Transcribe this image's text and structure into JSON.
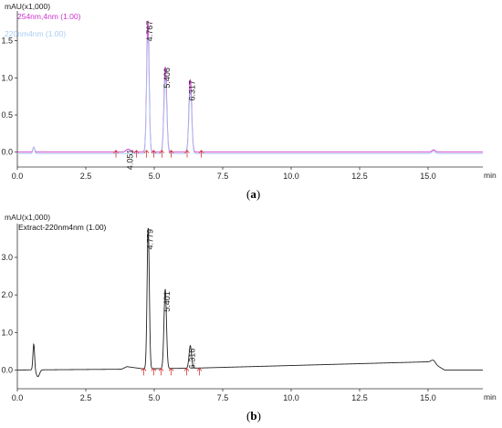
{
  "chart_data": [
    {
      "type": "line",
      "caption": "a",
      "y_unit_label": "mAU(x1,000)",
      "x_unit_label": "min",
      "legend": [
        {
          "text": "254nm,4nm (1.00)",
          "color": "#cc33cc"
        },
        {
          "text": "220nm4nm (1.00)",
          "color": "#aaccf0"
        }
      ],
      "xlim": [
        0,
        17
      ],
      "ylim": [
        -0.2,
        1.9
      ],
      "x_ticks": [
        0.0,
        2.5,
        5.0,
        7.5,
        10.0,
        12.5,
        15.0
      ],
      "x_tick_labels": [
        "0.0",
        "2.5",
        "5.0",
        "7.5",
        "10.0",
        "12.5",
        "15.0"
      ],
      "y_ticks": [
        0.0,
        0.5,
        1.0,
        1.5
      ],
      "y_tick_labels": [
        "0.0",
        "0.5",
        "1.0",
        "1.5"
      ],
      "series": [
        {
          "name": "254nm,4nm (1.00)",
          "color": "#cc33cc",
          "baseline": 0.0,
          "peaks": [
            {
              "x": 0.6,
              "height": 0.07,
              "width": 0.03
            },
            {
              "x": 4.051,
              "height": 0.04,
              "width": 0.08
            },
            {
              "x": 4.767,
              "height": 1.78,
              "width": 0.045
            },
            {
              "x": 5.406,
              "height": 1.15,
              "width": 0.05
            },
            {
              "x": 6.317,
              "height": 0.98,
              "width": 0.05
            },
            {
              "x": 15.2,
              "height": 0.03,
              "width": 0.06
            }
          ]
        },
        {
          "name": "220nm4nm (1.00)",
          "color": "#aaccf0",
          "baseline": -0.02,
          "peaks": [
            {
              "x": 0.6,
              "height": 0.09,
              "width": 0.03
            },
            {
              "x": 4.767,
              "height": 1.58,
              "width": 0.045
            },
            {
              "x": 5.406,
              "height": 1.0,
              "width": 0.05
            },
            {
              "x": 6.317,
              "height": 0.85,
              "width": 0.05
            },
            {
              "x": 15.2,
              "height": 0.03,
              "width": 0.06
            }
          ]
        }
      ],
      "peak_labels": [
        {
          "x": 4.051,
          "y": 0.05,
          "text": "4.051"
        },
        {
          "x": 4.767,
          "y": 1.78,
          "text": "4.767"
        },
        {
          "x": 5.406,
          "y": 1.15,
          "text": "5.406"
        },
        {
          "x": 6.317,
          "y": 0.98,
          "text": "6.317"
        }
      ],
      "integration_markers": [
        3.6,
        4.35,
        4.72,
        4.98,
        5.28,
        5.62,
        6.2,
        6.72
      ],
      "integration_marker_y": 0.0
    },
    {
      "type": "line",
      "caption": "b",
      "y_unit_label": "mAU(x1,000)",
      "x_unit_label": "min",
      "legend": [
        {
          "text": "Extract-220nm4nm (1.00)",
          "color": "#111111"
        }
      ],
      "xlim": [
        0,
        17
      ],
      "ylim": [
        -0.5,
        3.9
      ],
      "x_ticks": [
        0.0,
        2.5,
        5.0,
        7.5,
        10.0,
        12.5,
        15.0
      ],
      "x_tick_labels": [
        "0.0",
        "2.5",
        "5.0",
        "7.5",
        "10.0",
        "12.5",
        "15.0"
      ],
      "y_ticks": [
        0.0,
        1.0,
        2.0,
        3.0
      ],
      "y_tick_labels": [
        "0.0",
        "1.0",
        "2.0",
        "3.0"
      ],
      "series": [
        {
          "name": "Extract-220nm4nm (1.00)",
          "color": "#222222",
          "baseline": 0.0,
          "drift": [
            [
              0,
              0.0
            ],
            [
              3.8,
              0.02
            ],
            [
              4.0,
              0.09
            ],
            [
              4.6,
              0.03
            ],
            [
              6.5,
              0.05
            ],
            [
              15.1,
              0.22
            ],
            [
              15.6,
              0.0
            ],
            [
              17,
              0.0
            ]
          ],
          "peaks": [
            {
              "x": 0.6,
              "height": 0.7,
              "width": 0.03
            },
            {
              "x": 0.75,
              "height": -0.18,
              "width": 0.06
            },
            {
              "x": 4.779,
              "height": 3.78,
              "width": 0.04
            },
            {
              "x": 5.401,
              "height": 2.12,
              "width": 0.045
            },
            {
              "x": 6.316,
              "height": 0.6,
              "width": 0.045
            },
            {
              "x": 15.2,
              "height": 0.08,
              "width": 0.07
            }
          ]
        }
      ],
      "peak_labels": [
        {
          "x": 4.779,
          "y": 3.78,
          "text": "4.779"
        },
        {
          "x": 5.401,
          "y": 2.12,
          "text": "5.401"
        },
        {
          "x": 6.316,
          "y": 0.6,
          "text": "6.316"
        }
      ],
      "integration_markers": [
        4.62,
        4.98,
        5.25,
        5.62,
        6.18,
        6.65
      ],
      "integration_marker_y": 0.0
    }
  ]
}
